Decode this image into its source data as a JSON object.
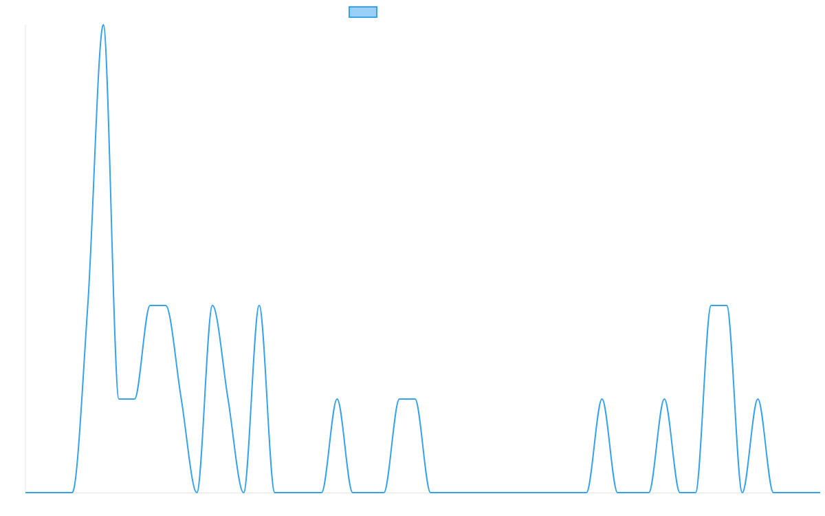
{
  "chart_data": {
    "type": "line",
    "categories": [
      null,
      null,
      null,
      null,
      null,
      null,
      null,
      null,
      null,
      null,
      null,
      null,
      null,
      null,
      null,
      null,
      null,
      null,
      null,
      null,
      null,
      null,
      null,
      null,
      null,
      null,
      null,
      null,
      null,
      null,
      null,
      null,
      null,
      null,
      null,
      null,
      null,
      null,
      null,
      null,
      null,
      null,
      null,
      null,
      null,
      null,
      null,
      null,
      null,
      null,
      null,
      null
    ],
    "series": [
      {
        "color": "#36a2eb",
        "fill": "#9ad0f5",
        "values": [
          0,
          0,
          0,
          0,
          2,
          5,
          1,
          1,
          2,
          2,
          1,
          0,
          2,
          1,
          0,
          2,
          0,
          0,
          0,
          0,
          1,
          0,
          0,
          0,
          1,
          1,
          0,
          0,
          0,
          0,
          0,
          0,
          0,
          0,
          0,
          0,
          0,
          1,
          0,
          0,
          0,
          1,
          0,
          0,
          2,
          2,
          0,
          1,
          0,
          0,
          0,
          0
        ]
      }
    ],
    "ylim": [
      0,
      5
    ]
  }
}
